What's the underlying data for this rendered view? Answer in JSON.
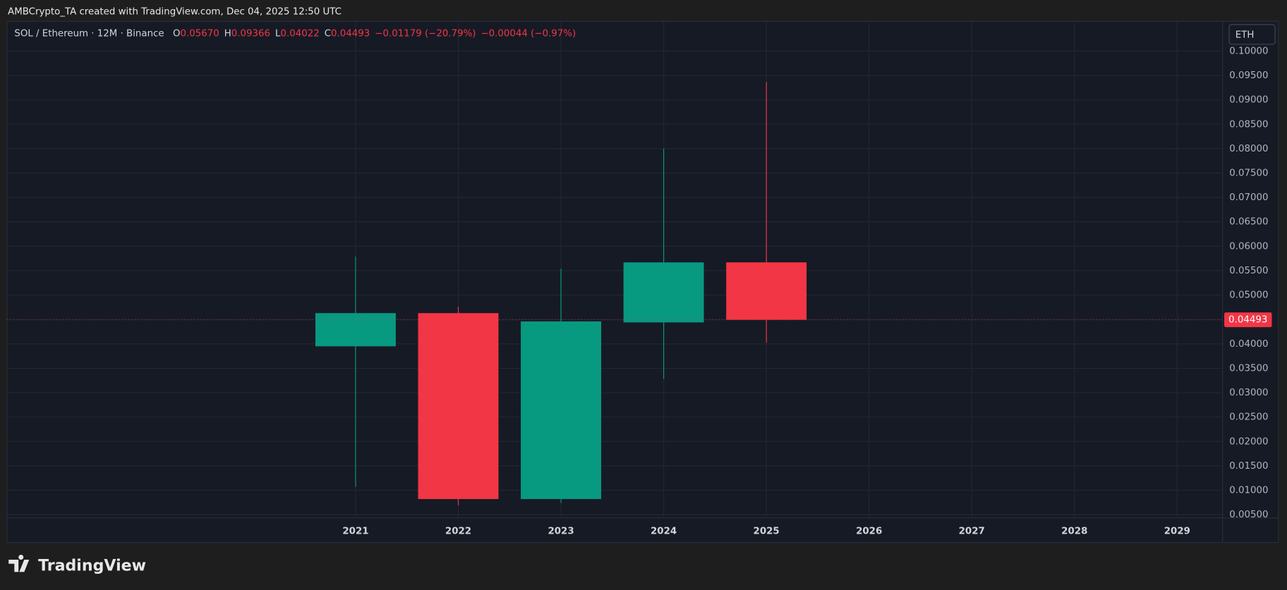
{
  "attribution": "AMBCrypto_TA created with TradingView.com, Dec 04, 2025 12:50 UTC",
  "branding": "TradingView",
  "chart_data": {
    "type": "candlestick",
    "title": "SOL / Ethereum · 12M · Binance",
    "ohlc_legend": [
      {
        "label": "O",
        "value": "0.05670"
      },
      {
        "label": "H",
        "value": "0.09366"
      },
      {
        "label": "L",
        "value": "0.04022"
      },
      {
        "label": "C",
        "value": "0.04493"
      }
    ],
    "changes": [
      "−0.01179 (−20.79%)",
      "−0.00044 (−0.97%)"
    ],
    "currency": "ETH",
    "last_price_label": "0.04493",
    "categories": [
      "2021",
      "2022",
      "2023",
      "2024",
      "2025",
      "2026",
      "2027",
      "2028",
      "2029"
    ],
    "open": [
      0.0395,
      0.0463,
      0.0082,
      0.0444,
      0.0567,
      null,
      null,
      null,
      null
    ],
    "high": [
      0.0579,
      0.0476,
      0.0554,
      0.08,
      0.09366,
      null,
      null,
      null,
      null
    ],
    "low": [
      0.0107,
      0.0069,
      0.0074,
      0.0328,
      0.04022,
      null,
      null,
      null,
      null
    ],
    "close": [
      0.0463,
      0.0082,
      0.0446,
      0.0567,
      0.04493,
      null,
      null,
      null,
      null
    ],
    "up_color": "#089981",
    "down_color": "#f23645",
    "ylim": [
      -0.0007,
      0.1061
    ],
    "yticks": [
      {
        "value": 0.005,
        "label": "0.00500"
      },
      {
        "value": 0.01,
        "label": "0.01000"
      },
      {
        "value": 0.015,
        "label": "0.01500"
      },
      {
        "value": 0.02,
        "label": "0.02000"
      },
      {
        "value": 0.025,
        "label": "0.02500"
      },
      {
        "value": 0.03,
        "label": "0.03000"
      },
      {
        "value": 0.035,
        "label": "0.03500"
      },
      {
        "value": 0.04,
        "label": "0.04000"
      },
      {
        "value": 0.045,
        "label": "0.04500"
      },
      {
        "value": 0.05,
        "label": "0.05000"
      },
      {
        "value": 0.055,
        "label": "0.05500"
      },
      {
        "value": 0.06,
        "label": "0.06000"
      },
      {
        "value": 0.065,
        "label": "0.06500"
      },
      {
        "value": 0.07,
        "label": "0.07000"
      },
      {
        "value": 0.075,
        "label": "0.07500"
      },
      {
        "value": 0.08,
        "label": "0.08000"
      },
      {
        "value": 0.085,
        "label": "0.08500"
      },
      {
        "value": 0.09,
        "label": "0.09000"
      },
      {
        "value": 0.095,
        "label": "0.09500"
      },
      {
        "value": 0.1,
        "label": "0.10000"
      }
    ],
    "grid": true
  }
}
